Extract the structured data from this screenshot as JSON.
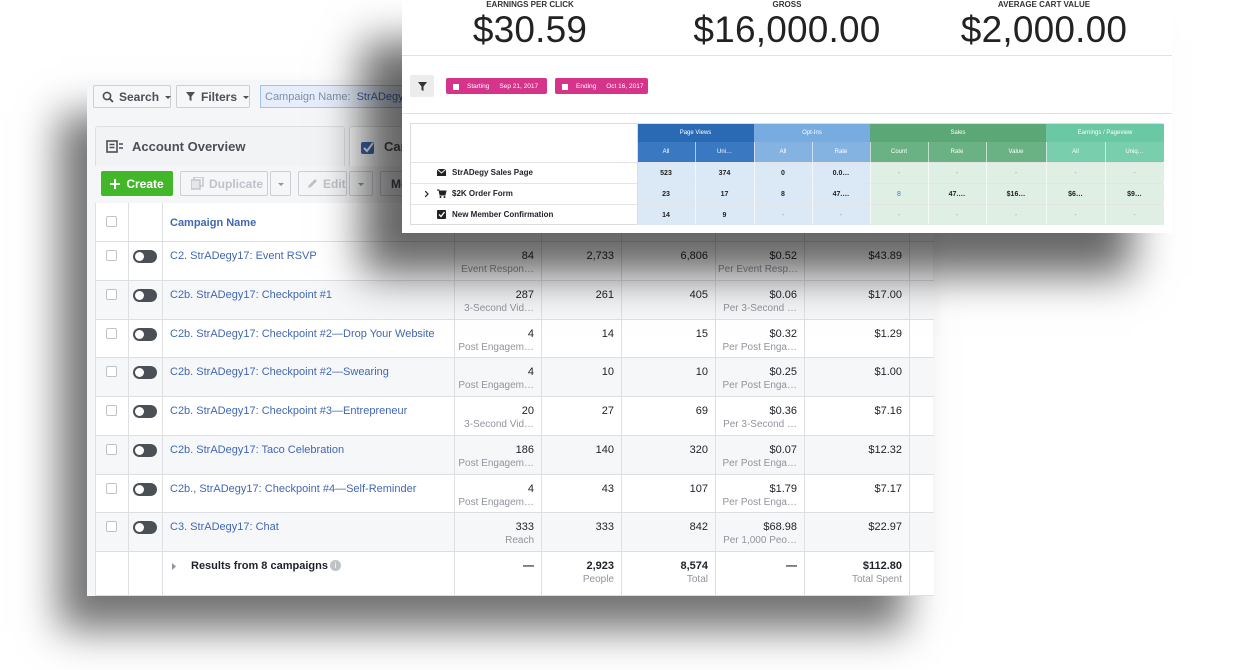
{
  "ads_manager": {
    "toolbar": {
      "search": "Search",
      "filters": "Filters",
      "chip_label": "Campaign Name:",
      "chip_value": "StrADegy"
    },
    "tabs": [
      "Account Overview",
      "Campaigns"
    ],
    "actions": {
      "create": "Create",
      "duplicate": "Duplicate",
      "edit": "Edit",
      "more": "More"
    },
    "table": {
      "name_header": "Campaign Name",
      "rows": [
        {
          "name": "C2. StrADegy17: Event RSVP",
          "results": "84",
          "result_type": "Event Respon…",
          "reach": "2,733",
          "impressions": "6,806",
          "cost": "$0.52",
          "cost_type": "Per Event Resp…",
          "spent": "$43.89"
        },
        {
          "name": "C2b. StrADegy17: Checkpoint #1",
          "results": "287",
          "result_type": "3-Second Vid…",
          "reach": "261",
          "impressions": "405",
          "cost": "$0.06",
          "cost_type": "Per 3-Second …",
          "spent": "$17.00"
        },
        {
          "name": "C2b. StrADegy17: Checkpoint #2—Drop Your Website",
          "results": "4",
          "result_type": "Post Engagem…",
          "reach": "14",
          "impressions": "15",
          "cost": "$0.32",
          "cost_type": "Per Post Enga…",
          "spent": "$1.29"
        },
        {
          "name": "C2b. StrADegy17: Checkpoint #2—Swearing",
          "results": "4",
          "result_type": "Post Engagem…",
          "reach": "10",
          "impressions": "10",
          "cost": "$0.25",
          "cost_type": "Per Post Enga…",
          "spent": "$1.00"
        },
        {
          "name": "C2b. StrADegy17: Checkpoint #3—Entrepreneur",
          "results": "20",
          "result_type": "3-Second Vid…",
          "reach": "27",
          "impressions": "69",
          "cost": "$0.36",
          "cost_type": "Per 3-Second …",
          "spent": "$7.16"
        },
        {
          "name": "C2b. StrADegy17: Taco Celebration",
          "results": "186",
          "result_type": "Post Engagem…",
          "reach": "140",
          "impressions": "320",
          "cost": "$0.07",
          "cost_type": "Per Post Enga…",
          "spent": "$12.32"
        },
        {
          "name": "C2b., StrADegy17: Checkpoint #4—Self-Reminder",
          "results": "4",
          "result_type": "Post Engagem…",
          "reach": "43",
          "impressions": "107",
          "cost": "$1.79",
          "cost_type": "Per Post Enga…",
          "spent": "$7.17"
        },
        {
          "name": "C3. StrADegy17: Chat",
          "results": "333",
          "result_type": "Reach",
          "reach": "333",
          "impressions": "842",
          "cost": "$68.98",
          "cost_type": "Per 1,000 Peo…",
          "spent": "$22.97"
        }
      ],
      "summary": {
        "label": "Results from 8 campaigns",
        "results": "—",
        "reach": "2,923",
        "reach_unit": "People",
        "impressions": "8,574",
        "impressions_unit": "Total",
        "cost": "—",
        "spent": "$112.80",
        "spent_unit": "Total Spent"
      }
    }
  },
  "funnel_stats": {
    "metrics": [
      {
        "label": "EARNINGS PER CLICK",
        "value": "$30.59"
      },
      {
        "label": "GROSS",
        "value": "$16,000.00"
      },
      {
        "label": "AVERAGE CART VALUE",
        "value": "$2,000.00"
      }
    ],
    "date_filter": {
      "start_label": "Starting",
      "start": "Sep 21, 2017",
      "end_label": "Ending",
      "end": "Oct 16, 2017"
    },
    "table": {
      "groups": [
        "Page Views",
        "Opt-Ins",
        "Sales",
        "Earnings / Pageview"
      ],
      "columns": [
        "All",
        "Uni…",
        "All",
        "Rate",
        "Count",
        "Rate",
        "Value",
        "All",
        "Uniq…"
      ],
      "rows": [
        {
          "label": "StrADegy Sales Page",
          "cells": [
            "523",
            "374",
            "0",
            "0.0…",
            "-",
            "-",
            "-",
            "-",
            "-"
          ]
        },
        {
          "label": "$2K Order Form",
          "cells": [
            "23",
            "17",
            "8",
            "47.…",
            "8",
            "47.…",
            "$16…",
            "$6…",
            "$9…"
          ]
        },
        {
          "label": "New Member Confirmation",
          "cells": [
            "14",
            "9",
            "-",
            "-",
            "-",
            "-",
            "-",
            "-",
            "-"
          ]
        }
      ]
    }
  }
}
